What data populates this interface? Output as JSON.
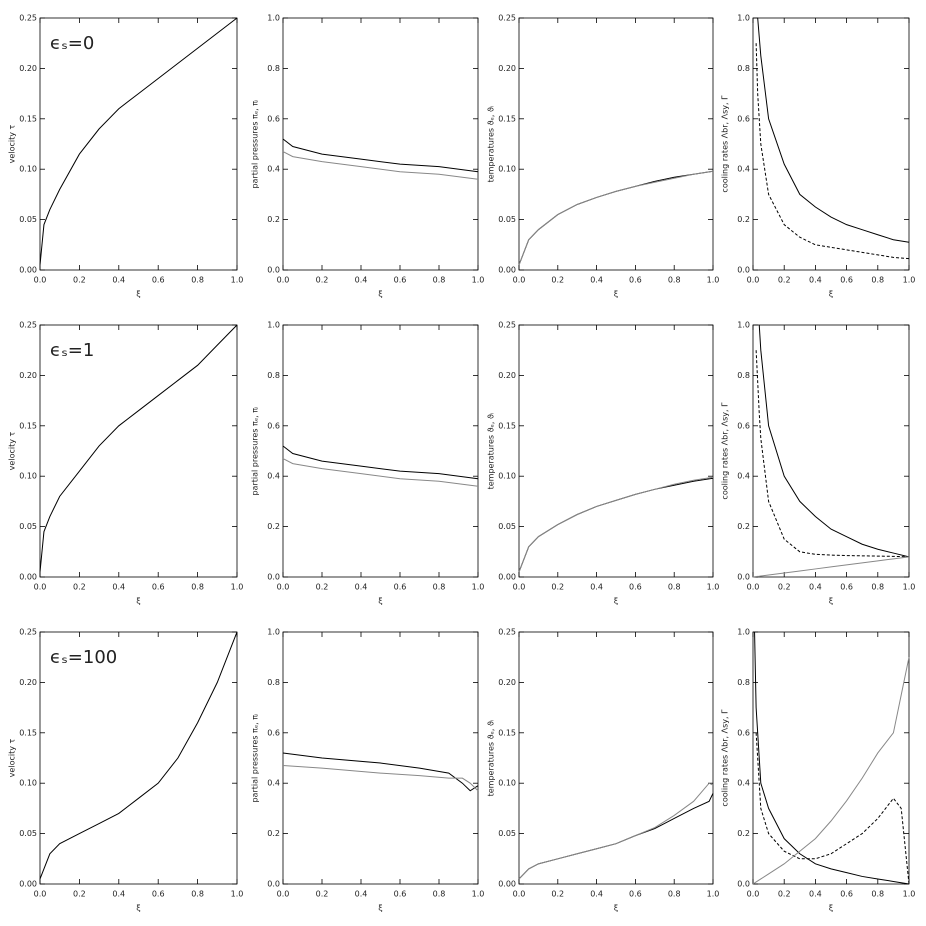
{
  "chart_data": [
    {
      "type": "line",
      "xlabel": "ξ",
      "ylabel": "velocity τ",
      "annotation": "ϵₛ=0",
      "xlim": [
        0,
        1
      ],
      "ylim": [
        0,
        0.25
      ],
      "xticks": [
        {
          "value": 0,
          "label": "0.0"
        },
        0.2,
        0.4,
        0.6,
        0.8,
        {
          "value": 1,
          "label": "1.0"
        }
      ],
      "yticks": [
        {
          "value": 0,
          "label": "0.00"
        },
        0.05,
        {
          "value": 0.1,
          "label": "0.10"
        },
        0.15,
        {
          "value": 0.2,
          "label": "0.20"
        },
        0.25
      ],
      "x": [
        0,
        0.02,
        0.05,
        0.1,
        0.2,
        0.3,
        0.4,
        0.5,
        0.6,
        0.7,
        0.8,
        0.9,
        1
      ],
      "series": [
        {
          "color": "#000000",
          "values": [
            0.005,
            0.045,
            0.06,
            0.08,
            0.115,
            0.14,
            0.16,
            0.175,
            0.19,
            0.205,
            0.22,
            0.235,
            0.25
          ]
        }
      ]
    },
    {
      "type": "line",
      "xlabel": "ξ",
      "ylabel": "partial pressures πₑ, πᵢ",
      "xlim": [
        0,
        1
      ],
      "ylim": [
        0,
        1
      ],
      "xticks": [
        {
          "value": 0,
          "label": "0.0"
        },
        0.2,
        0.4,
        0.6,
        0.8,
        {
          "value": 1,
          "label": "1.0"
        }
      ],
      "yticks": [
        {
          "value": 0,
          "label": "0.0"
        },
        0.2,
        0.4,
        0.6,
        0.8,
        {
          "value": 1,
          "label": "1.0"
        }
      ],
      "x": [
        0,
        0.05,
        0.2,
        0.4,
        0.6,
        0.8,
        1
      ],
      "series": [
        {
          "color": "#000000",
          "values": [
            0.52,
            0.49,
            0.46,
            0.44,
            0.42,
            0.41,
            0.39
          ]
        },
        {
          "color": "#888888",
          "values": [
            0.47,
            0.45,
            0.43,
            0.41,
            0.39,
            0.38,
            0.36
          ]
        }
      ]
    },
    {
      "type": "line",
      "xlabel": "ξ",
      "ylabel": "temperatures ϑₑ, ϑᵢ",
      "xlim": [
        0,
        1
      ],
      "ylim": [
        0,
        0.25
      ],
      "xticks": [
        {
          "value": 0,
          "label": "0.0"
        },
        0.2,
        0.4,
        0.6,
        0.8,
        {
          "value": 1,
          "label": "1.0"
        }
      ],
      "yticks": [
        {
          "value": 0,
          "label": "0.00"
        },
        0.05,
        {
          "value": 0.1,
          "label": "0.10"
        },
        0.15,
        {
          "value": 0.2,
          "label": "0.20"
        },
        0.25
      ],
      "x": [
        0,
        0.05,
        0.1,
        0.2,
        0.3,
        0.4,
        0.5,
        0.6,
        0.7,
        0.8,
        0.9,
        1
      ],
      "series": [
        {
          "color": "#000000",
          "values": [
            0.005,
            0.03,
            0.04,
            0.055,
            0.065,
            0.072,
            0.078,
            0.083,
            0.088,
            0.092,
            0.095,
            0.098
          ]
        },
        {
          "color": "#888888",
          "values": [
            0.005,
            0.03,
            0.04,
            0.055,
            0.065,
            0.072,
            0.078,
            0.083,
            0.087,
            0.091,
            0.095,
            0.098
          ]
        }
      ]
    },
    {
      "type": "line",
      "xlabel": "ξ",
      "ylabel": "cooling rates Λbr, Λsy, Γ",
      "xlim": [
        0,
        1
      ],
      "ylim": [
        0,
        1
      ],
      "xticks": [
        {
          "value": 0,
          "label": "0.0"
        },
        0.2,
        0.4,
        0.6,
        0.8,
        {
          "value": 1,
          "label": "1.0"
        }
      ],
      "yticks": [
        {
          "value": 0,
          "label": "0.0"
        },
        0.2,
        0.4,
        0.6,
        0.8,
        {
          "value": 1,
          "label": "1.0"
        }
      ],
      "x": [
        0.02,
        0.03,
        0.05,
        0.1,
        0.2,
        0.3,
        0.4,
        0.5,
        0.6,
        0.7,
        0.8,
        0.9,
        1
      ],
      "series": [
        {
          "color": "#000000",
          "values": [
            null,
            1,
            0.85,
            0.6,
            0.42,
            0.3,
            0.25,
            0.21,
            0.18,
            0.16,
            0.14,
            0.12,
            0.11
          ]
        },
        {
          "color": "#000000",
          "style": "dashed",
          "values": [
            0.9,
            0.7,
            0.5,
            0.3,
            0.18,
            0.13,
            0.1,
            0.09,
            0.08,
            0.07,
            0.06,
            0.05,
            0.045
          ]
        }
      ]
    },
    {
      "type": "line",
      "xlabel": "ξ",
      "ylabel": "velocity τ",
      "annotation": "ϵₛ=1",
      "xlim": [
        0,
        1
      ],
      "ylim": [
        0,
        0.25
      ],
      "xticks": [
        {
          "value": 0,
          "label": "0.0"
        },
        0.2,
        0.4,
        0.6,
        0.8,
        {
          "value": 1,
          "label": "1.0"
        }
      ],
      "yticks": [
        {
          "value": 0,
          "label": "0.00"
        },
        0.05,
        {
          "value": 0.1,
          "label": "0.10"
        },
        0.15,
        {
          "value": 0.2,
          "label": "0.20"
        },
        0.25
      ],
      "x": [
        0,
        0.02,
        0.05,
        0.1,
        0.2,
        0.3,
        0.4,
        0.5,
        0.6,
        0.7,
        0.8,
        0.9,
        1
      ],
      "series": [
        {
          "color": "#000000",
          "values": [
            0.005,
            0.045,
            0.06,
            0.08,
            0.105,
            0.13,
            0.15,
            0.165,
            0.18,
            0.195,
            0.21,
            0.23,
            0.25
          ]
        }
      ]
    },
    {
      "type": "line",
      "xlabel": "ξ",
      "ylabel": "partial pressures πₑ, πᵢ",
      "xlim": [
        0,
        1
      ],
      "ylim": [
        0,
        1
      ],
      "xticks": [
        {
          "value": 0,
          "label": "0.0"
        },
        0.2,
        0.4,
        0.6,
        0.8,
        {
          "value": 1,
          "label": "1.0"
        }
      ],
      "yticks": [
        {
          "value": 0,
          "label": "0.0"
        },
        0.2,
        0.4,
        0.6,
        0.8,
        {
          "value": 1,
          "label": "1.0"
        }
      ],
      "x": [
        0,
        0.05,
        0.2,
        0.4,
        0.6,
        0.8,
        1
      ],
      "series": [
        {
          "color": "#000000",
          "values": [
            0.52,
            0.49,
            0.46,
            0.44,
            0.42,
            0.41,
            0.39
          ]
        },
        {
          "color": "#888888",
          "values": [
            0.47,
            0.45,
            0.43,
            0.41,
            0.39,
            0.38,
            0.36
          ]
        }
      ]
    },
    {
      "type": "line",
      "xlabel": "ξ",
      "ylabel": "temperatures ϑₑ, ϑᵢ",
      "xlim": [
        0,
        1
      ],
      "ylim": [
        0,
        0.25
      ],
      "xticks": [
        {
          "value": 0,
          "label": "0.0"
        },
        0.2,
        0.4,
        0.6,
        0.8,
        {
          "value": 1,
          "label": "1.0"
        }
      ],
      "yticks": [
        {
          "value": 0,
          "label": "0.00"
        },
        0.05,
        {
          "value": 0.1,
          "label": "0.10"
        },
        0.15,
        {
          "value": 0.2,
          "label": "0.20"
        },
        0.25
      ],
      "x": [
        0,
        0.05,
        0.1,
        0.2,
        0.3,
        0.4,
        0.5,
        0.6,
        0.7,
        0.8,
        0.9,
        1
      ],
      "series": [
        {
          "color": "#000000",
          "values": [
            0.005,
            0.03,
            0.04,
            0.052,
            0.062,
            0.07,
            0.076,
            0.082,
            0.087,
            0.091,
            0.095,
            0.098
          ]
        },
        {
          "color": "#888888",
          "values": [
            0.005,
            0.03,
            0.04,
            0.052,
            0.062,
            0.07,
            0.076,
            0.082,
            0.087,
            0.092,
            0.096,
            0.099
          ]
        }
      ]
    },
    {
      "type": "line",
      "xlabel": "ξ",
      "ylabel": "cooling rates Λbr, Λsy, Γ",
      "xlim": [
        0,
        1
      ],
      "ylim": [
        0,
        1
      ],
      "xticks": [
        {
          "value": 0,
          "label": "0.0"
        },
        0.2,
        0.4,
        0.6,
        0.8,
        {
          "value": 1,
          "label": "1.0"
        }
      ],
      "yticks": [
        {
          "value": 0,
          "label": "0.0"
        },
        0.2,
        0.4,
        0.6,
        0.8,
        {
          "value": 1,
          "label": "1.0"
        }
      ],
      "x": [
        0,
        0.02,
        0.04,
        0.05,
        0.1,
        0.2,
        0.3,
        0.4,
        0.5,
        0.6,
        0.7,
        0.8,
        0.9,
        1
      ],
      "series": [
        {
          "color": "#000000",
          "values": [
            null,
            null,
            1,
            0.9,
            0.6,
            0.4,
            0.3,
            0.24,
            0.19,
            0.16,
            0.13,
            0.11,
            0.095,
            0.08
          ]
        },
        {
          "color": "#000000",
          "style": "dashed",
          "values": [
            null,
            0.9,
            0.65,
            0.55,
            0.3,
            0.15,
            0.1,
            0.09,
            0.087,
            0.085,
            0.084,
            0.083,
            0.082,
            0.08
          ]
        },
        {
          "color": "#888888",
          "values": [
            0,
            0.002,
            0.003,
            0.004,
            0.008,
            0.016,
            0.024,
            0.032,
            0.04,
            0.048,
            0.056,
            0.064,
            0.072,
            0.08
          ]
        }
      ]
    },
    {
      "type": "line",
      "xlabel": "ξ",
      "ylabel": "velocity τ",
      "annotation": "ϵₛ=100",
      "xlim": [
        0,
        1
      ],
      "ylim": [
        0,
        0.25
      ],
      "xticks": [
        {
          "value": 0,
          "label": "0.0"
        },
        0.2,
        0.4,
        0.6,
        0.8,
        {
          "value": 1,
          "label": "1.0"
        }
      ],
      "yticks": [
        {
          "value": 0,
          "label": "0.00"
        },
        0.05,
        {
          "value": 0.1,
          "label": "0.10"
        },
        0.15,
        {
          "value": 0.2,
          "label": "0.20"
        },
        0.25
      ],
      "x": [
        0,
        0.05,
        0.1,
        0.2,
        0.3,
        0.4,
        0.5,
        0.6,
        0.7,
        0.8,
        0.9,
        1
      ],
      "series": [
        {
          "color": "#000000",
          "values": [
            0.005,
            0.03,
            0.04,
            0.05,
            0.06,
            0.07,
            0.085,
            0.1,
            0.125,
            0.16,
            0.2,
            0.25
          ]
        }
      ]
    },
    {
      "type": "line",
      "xlabel": "ξ",
      "ylabel": "partial pressures πₑ, πᵢ",
      "xlim": [
        0,
        1
      ],
      "ylim": [
        0,
        1
      ],
      "xticks": [
        {
          "value": 0,
          "label": "0.0"
        },
        0.2,
        0.4,
        0.6,
        0.8,
        {
          "value": 1,
          "label": "1.0"
        }
      ],
      "yticks": [
        {
          "value": 0,
          "label": "0.0"
        },
        0.2,
        0.4,
        0.6,
        0.8,
        {
          "value": 1,
          "label": "1.0"
        }
      ],
      "x": [
        0,
        0.2,
        0.5,
        0.7,
        0.85,
        0.92,
        0.96,
        1
      ],
      "series": [
        {
          "color": "#000000",
          "values": [
            0.52,
            0.5,
            0.48,
            0.46,
            0.44,
            0.4,
            0.37,
            0.39
          ]
        },
        {
          "color": "#888888",
          "values": [
            0.47,
            0.46,
            0.44,
            0.43,
            0.42,
            0.42,
            0.4,
            0.37
          ]
        }
      ]
    },
    {
      "type": "line",
      "xlabel": "ξ",
      "ylabel": "temperatures ϑₑ, ϑᵢ",
      "xlim": [
        0,
        1
      ],
      "ylim": [
        0,
        0.25
      ],
      "xticks": [
        {
          "value": 0,
          "label": "0.0"
        },
        0.2,
        0.4,
        0.6,
        0.8,
        {
          "value": 1,
          "label": "1.0"
        }
      ],
      "yticks": [
        {
          "value": 0,
          "label": "0.00"
        },
        0.05,
        {
          "value": 0.1,
          "label": "0.10"
        },
        0.15,
        {
          "value": 0.2,
          "label": "0.20"
        },
        0.25
      ],
      "x": [
        0,
        0.05,
        0.1,
        0.2,
        0.3,
        0.4,
        0.5,
        0.6,
        0.7,
        0.8,
        0.9,
        0.98,
        1
      ],
      "series": [
        {
          "color": "#000000",
          "values": [
            0.005,
            0.015,
            0.02,
            0.025,
            0.03,
            0.035,
            0.04,
            0.048,
            0.055,
            0.065,
            0.075,
            0.082,
            0.09
          ]
        },
        {
          "color": "#888888",
          "values": [
            0.005,
            0.015,
            0.02,
            0.025,
            0.03,
            0.035,
            0.04,
            0.048,
            0.056,
            0.068,
            0.082,
            0.1,
            0.098
          ]
        }
      ]
    },
    {
      "type": "line",
      "xlabel": "ξ",
      "ylabel": "cooling rates Λbr, Λsy, Γ",
      "xlim": [
        0,
        1
      ],
      "ylim": [
        0,
        1
      ],
      "xticks": [
        {
          "value": 0,
          "label": "0.0"
        },
        0.2,
        0.4,
        0.6,
        0.8,
        {
          "value": 1,
          "label": "1.0"
        }
      ],
      "yticks": [
        {
          "value": 0,
          "label": "0.0"
        },
        0.2,
        0.4,
        0.6,
        0.8,
        {
          "value": 1,
          "label": "1.0"
        }
      ],
      "x": [
        0,
        0.01,
        0.02,
        0.05,
        0.1,
        0.2,
        0.3,
        0.4,
        0.5,
        0.6,
        0.7,
        0.8,
        0.9,
        0.95,
        1
      ],
      "series": [
        {
          "color": "#000000",
          "values": [
            null,
            1,
            0.7,
            0.4,
            0.3,
            0.18,
            0.12,
            0.08,
            0.06,
            0.045,
            0.03,
            0.02,
            0.01,
            0.005,
            0
          ]
        },
        {
          "color": "#000000",
          "style": "dashed",
          "values": [
            null,
            null,
            0.6,
            0.3,
            0.2,
            0.13,
            0.1,
            0.1,
            0.12,
            0.16,
            0.2,
            0.26,
            0.34,
            0.3,
            0
          ]
        },
        {
          "color": "#888888",
          "values": [
            0,
            0.004,
            0.008,
            0.02,
            0.04,
            0.08,
            0.13,
            0.18,
            0.25,
            0.33,
            0.42,
            0.52,
            0.6,
            0.75,
            0.9
          ]
        }
      ]
    }
  ]
}
